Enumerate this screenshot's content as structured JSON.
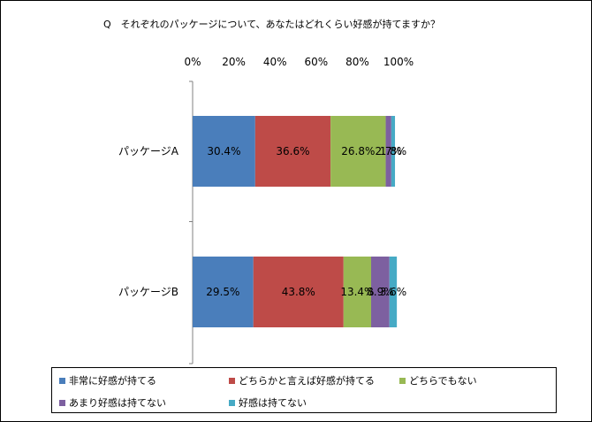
{
  "chart_data": {
    "type": "bar",
    "orientation": "horizontal",
    "stacked": true,
    "percent_scale": true,
    "title": "Q　それぞれのパッケージについて、あなたはどれくらい好感が持てますか？",
    "xlabel": "",
    "ylabel": "",
    "xlim": [
      0,
      100
    ],
    "x_ticks": [
      "0%",
      "20%",
      "40%",
      "60%",
      "80%",
      "100%"
    ],
    "categories": [
      "パッケージA",
      "パッケージB"
    ],
    "series": [
      {
        "name": "非常に好感が持てる",
        "color": "#4A7EBB",
        "values": [
          30.4,
          29.5
        ],
        "labels": [
          "30.4%",
          "29.5%"
        ]
      },
      {
        "name": "どちらかと言えば好感が持てる",
        "color": "#BE4B48",
        "values": [
          36.6,
          43.8
        ],
        "labels": [
          "36.6%",
          "43.8%"
        ]
      },
      {
        "name": "どちらでもない",
        "color": "#98B954",
        "values": [
          26.8,
          13.4
        ],
        "labels": [
          "26.8%",
          "13.4%"
        ]
      },
      {
        "name": "あまり好感は持てない",
        "color": "#7D60A0",
        "values": [
          2.7,
          8.9
        ],
        "labels": [
          "2.7%",
          "8.9%"
        ]
      },
      {
        "name": "好感は持てない",
        "color": "#46AAC5",
        "values": [
          1.8,
          3.6
        ],
        "labels": [
          "1.8%",
          "3.6%"
        ]
      }
    ],
    "grid": false,
    "legend_position": "bottom"
  }
}
